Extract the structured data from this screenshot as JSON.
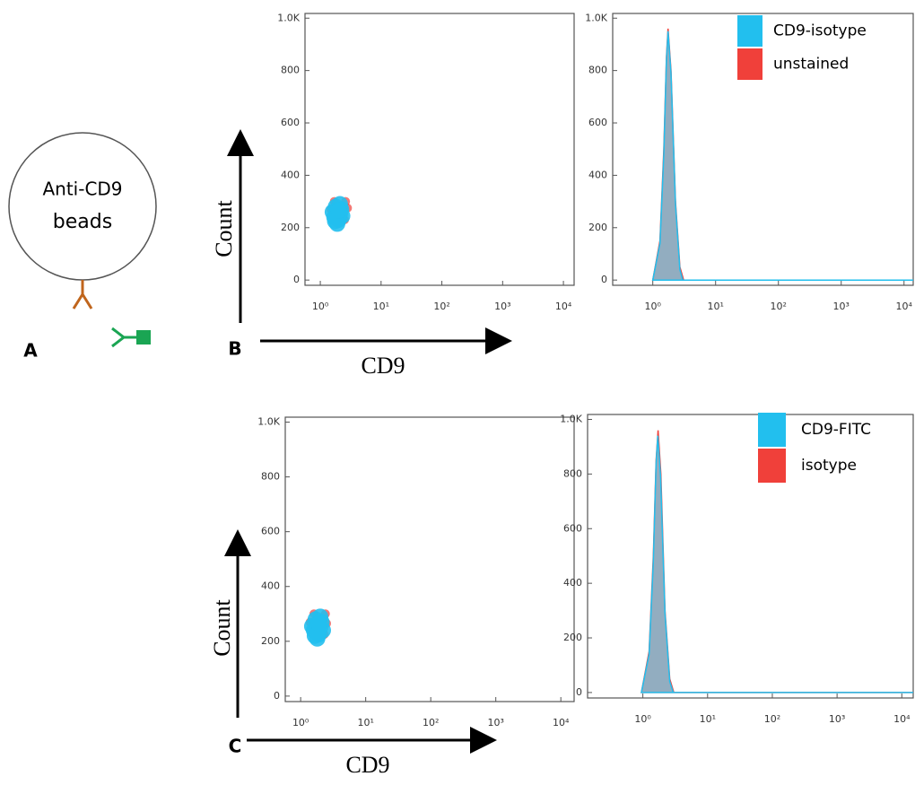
{
  "diagram": {
    "text": [
      "Anti-CD9",
      "beads"
    ],
    "label": "A"
  },
  "chart_data": [
    {
      "type": "scatter",
      "panel": "B",
      "xlabel": "CD9",
      "ylabel": "Count",
      "xscale": "log",
      "xlim": [
        0.56,
        15000
      ],
      "ylim": [
        -20,
        1018
      ],
      "xticks": [
        {
          "value": 1,
          "label": "10⁰"
        },
        {
          "value": 10,
          "label": "10¹"
        },
        {
          "value": 100,
          "label": "10²"
        },
        {
          "value": 1000,
          "label": "10³"
        },
        {
          "value": 10000,
          "label": "10⁴"
        }
      ],
      "yticks": [
        0,
        200,
        400,
        600,
        800,
        {
          "value": 1000,
          "label": "1.0K"
        }
      ],
      "series": [
        {
          "color": "#f0403a",
          "x": [
            1.5,
            2.4,
            2.6,
            1.7,
            2.5,
            2.8
          ],
          "y": [
            270,
            280,
            300,
            300,
            230,
            275
          ]
        },
        {
          "color": "#22bfee",
          "x": [
            1.7,
            1.9,
            2.1,
            1.8,
            2.2,
            2.0,
            1.6,
            2.3,
            1.9,
            2.1,
            1.75,
            2.0
          ],
          "y": [
            240,
            260,
            250,
            280,
            270,
            230,
            260,
            245,
            215,
            290,
            225,
            265
          ]
        }
      ]
    },
    {
      "type": "histogram",
      "xscale": "log",
      "legend": "upper right",
      "xlim": [
        0.23,
        14000
      ],
      "ylim": [
        -20,
        1018
      ],
      "xticks": [
        {
          "value": 1,
          "label": "10⁰"
        },
        {
          "value": 10,
          "label": "10¹"
        },
        {
          "value": 100,
          "label": "10²"
        },
        {
          "value": 1000,
          "label": "10³"
        },
        {
          "value": 10000,
          "label": "10⁴"
        }
      ],
      "yticks": [
        0,
        200,
        400,
        600,
        800,
        {
          "value": 1000,
          "label": "1.0K"
        }
      ],
      "series": [
        {
          "name": "unstained",
          "color": "#f0403a",
          "x": [
            1.0,
            1.3,
            1.5,
            1.65,
            1.75,
            1.95,
            2.3,
            2.7,
            3.1,
            14000
          ],
          "y": [
            0,
            150,
            500,
            850,
            960,
            800,
            300,
            50,
            0,
            0
          ]
        },
        {
          "name": "CD9-isotype",
          "color": "#22bfee",
          "x": [
            1.0,
            1.3,
            1.5,
            1.65,
            1.75,
            1.95,
            2.3,
            2.7,
            3.0,
            14000
          ],
          "y": [
            0,
            140,
            480,
            840,
            950,
            790,
            290,
            40,
            0,
            0
          ]
        }
      ]
    },
    {
      "type": "scatter",
      "panel": "C",
      "xlabel": "CD9",
      "ylabel": "Count",
      "xscale": "log",
      "xlim": [
        0.58,
        16000
      ],
      "ylim": [
        -20,
        1018
      ],
      "xticks": [
        {
          "value": 1,
          "label": "10⁰"
        },
        {
          "value": 10,
          "label": "10¹"
        },
        {
          "value": 100,
          "label": "10²"
        },
        {
          "value": 1000,
          "label": "10³"
        },
        {
          "value": 10000,
          "label": "10⁴"
        }
      ],
      "yticks": [
        0,
        200,
        400,
        600,
        800,
        {
          "value": 1000,
          "label": "1.0K"
        }
      ],
      "series": [
        {
          "color": "#f0403a",
          "x": [
            1.4,
            2.2,
            2.4,
            1.6,
            2.3,
            2.5
          ],
          "y": [
            270,
            280,
            300,
            300,
            225,
            265
          ]
        },
        {
          "color": "#22bfee",
          "x": [
            1.6,
            1.8,
            2.0,
            1.7,
            2.1,
            1.9,
            1.5,
            2.2,
            1.8,
            2.0,
            1.65,
            1.9
          ],
          "y": [
            240,
            260,
            250,
            280,
            270,
            225,
            255,
            240,
            210,
            290,
            220,
            265
          ]
        }
      ]
    },
    {
      "type": "histogram",
      "xscale": "log",
      "legend": "upper right",
      "xlim": [
        0.14,
        15000
      ],
      "ylim": [
        -20,
        1018
      ],
      "xticks": [
        {
          "value": 1,
          "label": "10⁰"
        },
        {
          "value": 10,
          "label": "10¹"
        },
        {
          "value": 100,
          "label": "10²"
        },
        {
          "value": 1000,
          "label": "10³"
        },
        {
          "value": 10000,
          "label": "10⁴"
        }
      ],
      "yticks": [
        0,
        200,
        400,
        600,
        800,
        {
          "value": 1000,
          "label": "1.0K"
        }
      ],
      "series": [
        {
          "name": "isotype",
          "color": "#f0403a",
          "x": [
            0.95,
            1.25,
            1.45,
            1.6,
            1.72,
            1.9,
            2.2,
            2.6,
            3.0,
            15000
          ],
          "y": [
            0,
            150,
            500,
            850,
            960,
            800,
            300,
            50,
            0,
            0
          ]
        },
        {
          "name": "CD9-FITC",
          "color": "#22bfee",
          "x": [
            0.95,
            1.25,
            1.45,
            1.6,
            1.7,
            1.88,
            2.2,
            2.6,
            2.95,
            15000
          ],
          "y": [
            0,
            140,
            480,
            840,
            940,
            790,
            290,
            40,
            0,
            0
          ]
        }
      ]
    }
  ]
}
